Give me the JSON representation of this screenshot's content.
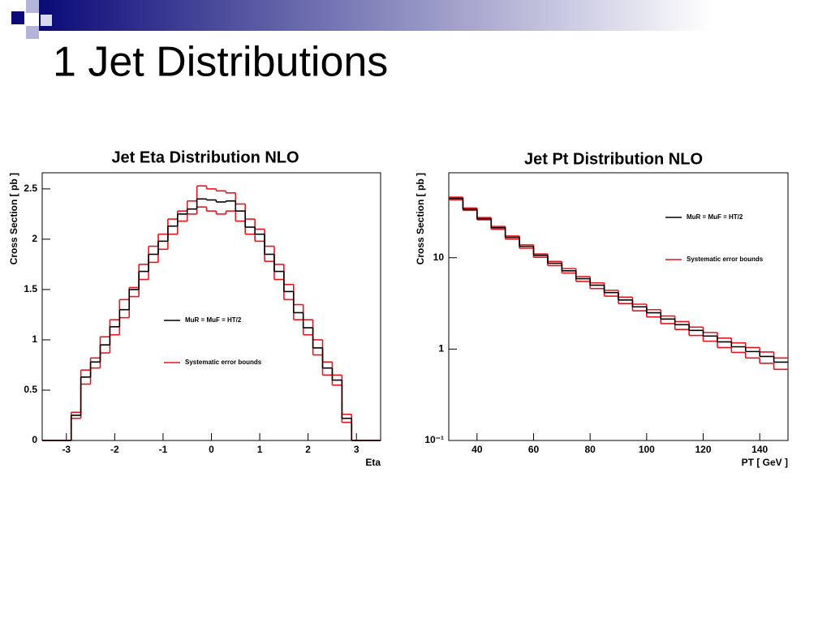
{
  "slide_title": "1 Jet Distributions",
  "chart_data": [
    {
      "type": "histogram",
      "title": "Jet Eta Distribution NLO",
      "x_label": "Eta",
      "y_label": "Cross Section [ pb ]",
      "bins": [
        -3.5,
        -3.3,
        -3.1,
        -2.9,
        -2.7,
        -2.5,
        -2.3,
        -2.1,
        -1.9,
        -1.7,
        -1.5,
        -1.3,
        -1.1,
        -0.9,
        -0.7,
        -0.5,
        -0.3,
        -0.1,
        0.1,
        0.3,
        0.5,
        0.7,
        0.9,
        1.1,
        1.3,
        1.5,
        1.7,
        1.9,
        2.1,
        2.3,
        2.5,
        2.7,
        2.9,
        3.1,
        3.3,
        3.5
      ],
      "series": [
        {
          "name": "MuR = MuF = HT/2",
          "color": "#000000",
          "values": [
            0,
            0,
            0,
            0.25,
            0.63,
            0.78,
            0.95,
            1.13,
            1.3,
            1.5,
            1.68,
            1.85,
            1.98,
            2.13,
            2.25,
            2.3,
            2.4,
            2.39,
            2.37,
            2.38,
            2.28,
            2.12,
            2.05,
            1.85,
            1.68,
            1.48,
            1.27,
            1.12,
            0.92,
            0.72,
            0.6,
            0.22,
            0,
            0,
            0
          ]
        },
        {
          "name": "Systematic error bounds",
          "color": "#e8141c",
          "values": [
            0,
            0,
            0,
            0.28,
            0.7,
            0.82,
            1.03,
            1.2,
            1.4,
            1.52,
            1.75,
            1.93,
            2.05,
            2.2,
            2.28,
            2.38,
            2.53,
            2.5,
            2.48,
            2.46,
            2.35,
            2.2,
            2.1,
            1.93,
            1.75,
            1.55,
            1.35,
            1.2,
            1.0,
            0.78,
            0.65,
            0.26,
            0,
            0,
            0
          ]
        },
        {
          "color": "#e8141c",
          "values": [
            0,
            0,
            0,
            0.22,
            0.56,
            0.72,
            0.87,
            1.05,
            1.22,
            1.43,
            1.6,
            1.77,
            1.9,
            2.05,
            2.18,
            2.25,
            2.32,
            2.28,
            2.25,
            2.28,
            2.18,
            2.05,
            1.98,
            1.78,
            1.6,
            1.4,
            1.2,
            1.05,
            0.85,
            0.65,
            0.55,
            0.18,
            0,
            0,
            0
          ]
        }
      ],
      "xlim": [
        -3.5,
        3.5
      ],
      "xticks": [
        -3,
        -2,
        -1,
        0,
        1,
        2,
        3
      ],
      "ylim": [
        0,
        2.66
      ],
      "yticks": [
        0,
        0.5,
        1,
        1.5,
        2,
        2.5
      ],
      "log_y": false,
      "grid": false
    },
    {
      "type": "histogram",
      "title": "Jet Pt Distribution NLO",
      "x_label": "PT [ GeV ]",
      "y_label": "Cross Section [ pb ]",
      "bins": [
        30,
        35,
        40,
        45,
        50,
        55,
        60,
        65,
        70,
        75,
        80,
        85,
        90,
        95,
        100,
        105,
        110,
        115,
        120,
        125,
        130,
        135,
        140,
        145,
        150
      ],
      "series": [
        {
          "name": "MuR = MuF = HT/2",
          "color": "#000000",
          "values": [
            44.6,
            34,
            26.7,
            21.3,
            16.7,
            13.3,
            10.6,
            8.7,
            7.2,
            5.9,
            5,
            4.15,
            3.45,
            2.9,
            2.5,
            2.13,
            1.85,
            1.6,
            1.39,
            1.2,
            1.06,
            0.94,
            0.83,
            0.72
          ]
        },
        {
          "name": "Systematic error bounds",
          "color": "#e8141c",
          "values": [
            46,
            35,
            27.5,
            22,
            17.3,
            13.8,
            11,
            9.1,
            7.6,
            6.2,
            5.3,
            4.4,
            3.7,
            3.1,
            2.7,
            2.3,
            2.0,
            1.74,
            1.52,
            1.32,
            1.17,
            1.04,
            0.93,
            0.8
          ]
        },
        {
          "color": "#e8141c",
          "values": [
            43,
            33,
            26,
            20.5,
            16,
            12.7,
            10.1,
            8.2,
            6.8,
            5.5,
            4.6,
            3.8,
            3.15,
            2.62,
            2.25,
            1.9,
            1.64,
            1.41,
            1.22,
            1.04,
            0.92,
            0.8,
            0.7,
            0.6
          ]
        }
      ],
      "xlim": [
        30,
        150
      ],
      "xticks": [
        40,
        60,
        80,
        100,
        120,
        140
      ],
      "ylim": [
        0.1,
        85
      ],
      "yticks": [
        {
          "value": 0.1,
          "label": "10⁻¹"
        },
        1,
        10
      ],
      "log_y": true,
      "grid": false
    }
  ]
}
